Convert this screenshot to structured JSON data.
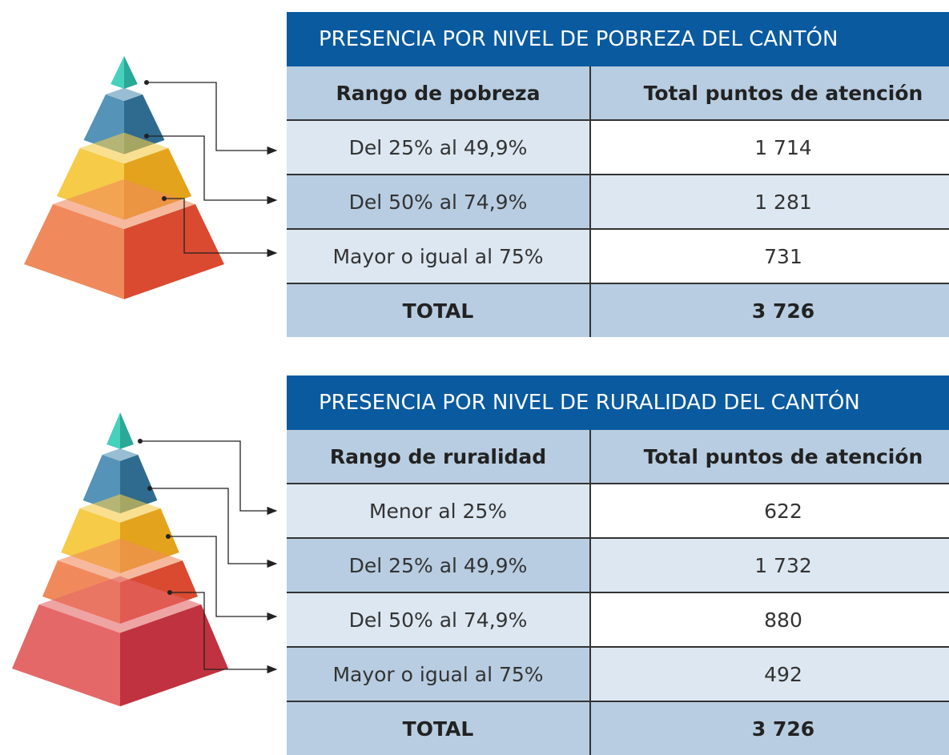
{
  "tables": [
    {
      "title": "PRESENCIA POR NIVEL DE POBREZA DEL CANTÓN",
      "header": [
        "Rango de pobreza",
        "Total puntos de atención"
      ],
      "rows": [
        [
          "Del 25% al 49,9%",
          "1 714"
        ],
        [
          "Del 50% al 74,9%",
          "1 281"
        ],
        [
          "Mayor o igual al 75%",
          "731"
        ]
      ],
      "total": [
        "TOTAL",
        "3 726"
      ]
    },
    {
      "title": "PRESENCIA POR NIVEL DE RURALIDAD DEL CANTÓN",
      "header": [
        "Rango de ruralidad",
        "Total puntos de atención"
      ],
      "rows": [
        [
          "Menor al 25%",
          "622"
        ],
        [
          "Del 25% al 49,9%",
          "1 732"
        ],
        [
          "Del 50% al 74,9%",
          "880"
        ],
        [
          "Mayor o igual al 75%",
          "492"
        ]
      ],
      "total": [
        "TOTAL",
        "3 726"
      ]
    }
  ]
}
